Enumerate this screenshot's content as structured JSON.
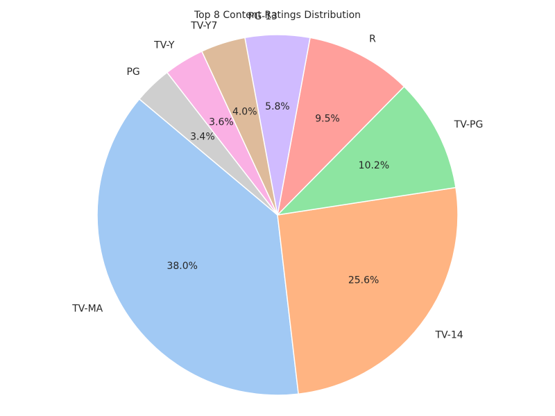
{
  "chart_data": {
    "type": "pie",
    "title": "Top 8 Content Ratings Distribution",
    "start_angle_deg": 140,
    "direction": "counterclockwise",
    "slices": [
      {
        "label": "TV-MA",
        "value": 38.0,
        "pct_label": "38.0%",
        "color": "#a1c9f4"
      },
      {
        "label": "TV-14",
        "value": 25.6,
        "pct_label": "25.6%",
        "color": "#ffb482"
      },
      {
        "label": "TV-PG",
        "value": 10.2,
        "pct_label": "10.2%",
        "color": "#8de5a1"
      },
      {
        "label": "R",
        "value": 9.5,
        "pct_label": "9.5%",
        "color": "#ff9f9b"
      },
      {
        "label": "PG-13",
        "value": 5.8,
        "pct_label": "5.8%",
        "color": "#d0bbff"
      },
      {
        "label": "TV-Y7",
        "value": 4.0,
        "pct_label": "4.0%",
        "color": "#debb9b"
      },
      {
        "label": "TV-Y",
        "value": 3.6,
        "pct_label": "3.6%",
        "color": "#fab0e4"
      },
      {
        "label": "PG",
        "value": 3.4,
        "pct_label": "3.4%",
        "color": "#cfcfcf"
      }
    ]
  }
}
